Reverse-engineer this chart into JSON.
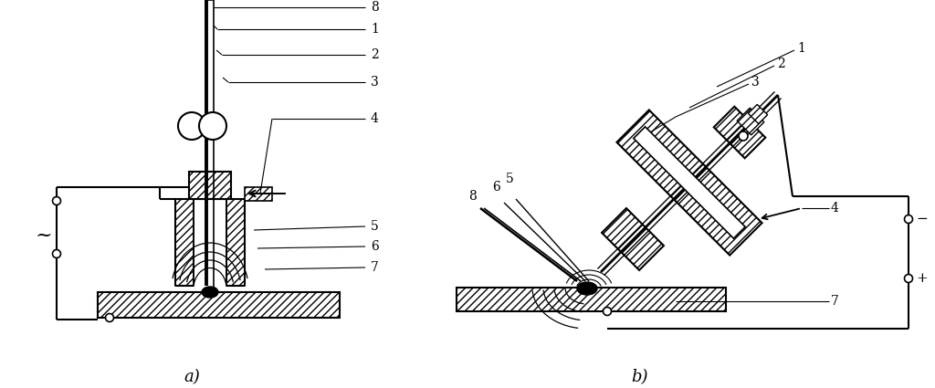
{
  "bg_color": "#ffffff",
  "fig_width": 10.24,
  "fig_height": 4.25
}
